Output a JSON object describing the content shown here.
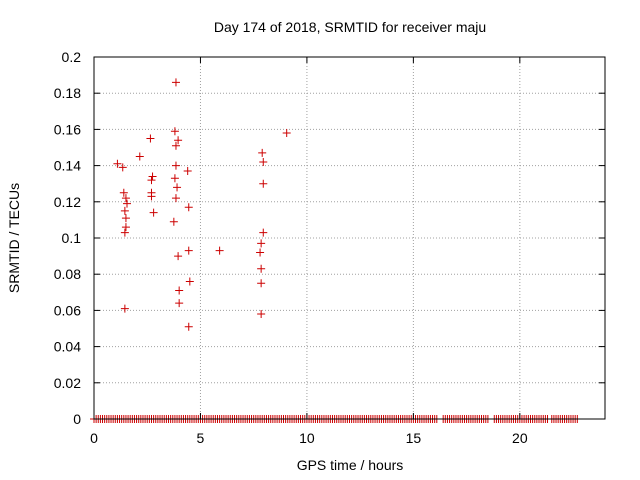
{
  "chart_data": {
    "type": "scatter",
    "title": "Day 174 of 2018, SRMTID for receiver maju",
    "xlabel": "GPS time / hours",
    "ylabel": "SRMTID / TECUs",
    "xlim": [
      0,
      24
    ],
    "ylim": [
      0,
      0.2
    ],
    "x_ticks": [
      0,
      5,
      10,
      15,
      20
    ],
    "y_ticks": [
      0,
      0.02,
      0.04,
      0.06,
      0.08,
      0.1,
      0.12,
      0.14,
      0.16,
      0.18,
      0.2
    ],
    "x_tick_labels": [
      "0",
      "5",
      "10",
      "15",
      "20"
    ],
    "y_tick_labels": [
      "0",
      "0.02",
      "0.04",
      "0.06",
      "0.08",
      "0.1",
      "0.12",
      "0.14",
      "0.16",
      "0.18",
      "0.2"
    ],
    "grid": true,
    "marker": "+",
    "marker_color": "#cc0000",
    "baseline": {
      "y": 0,
      "x_start": 0,
      "x_end": 22.75,
      "step": 0.1,
      "gaps": [
        [
          16.15,
          16.35
        ],
        [
          18.55,
          18.7
        ],
        [
          21.35,
          21.45
        ]
      ]
    },
    "series": [
      {
        "name": "SRMTID",
        "points": [
          [
            1.1,
            0.141
          ],
          [
            1.35,
            0.139
          ],
          [
            1.4,
            0.125
          ],
          [
            1.5,
            0.122
          ],
          [
            1.55,
            0.119
          ],
          [
            1.45,
            0.115
          ],
          [
            1.5,
            0.111
          ],
          [
            1.5,
            0.106
          ],
          [
            1.45,
            0.103
          ],
          [
            1.45,
            0.061
          ],
          [
            2.15,
            0.145
          ],
          [
            2.65,
            0.155
          ],
          [
            2.75,
            0.134
          ],
          [
            2.7,
            0.132
          ],
          [
            2.7,
            0.125
          ],
          [
            2.7,
            0.123
          ],
          [
            2.8,
            0.114
          ],
          [
            3.85,
            0.186
          ],
          [
            3.8,
            0.159
          ],
          [
            3.95,
            0.154
          ],
          [
            3.85,
            0.151
          ],
          [
            3.85,
            0.14
          ],
          [
            3.8,
            0.133
          ],
          [
            3.9,
            0.128
          ],
          [
            3.85,
            0.122
          ],
          [
            3.75,
            0.109
          ],
          [
            3.95,
            0.09
          ],
          [
            4.0,
            0.071
          ],
          [
            4.0,
            0.064
          ],
          [
            4.4,
            0.137
          ],
          [
            4.45,
            0.117
          ],
          [
            4.45,
            0.093
          ],
          [
            4.5,
            0.076
          ],
          [
            4.45,
            0.051
          ],
          [
            5.9,
            0.093
          ],
          [
            7.9,
            0.147
          ],
          [
            7.95,
            0.142
          ],
          [
            7.95,
            0.13
          ],
          [
            7.95,
            0.103
          ],
          [
            7.85,
            0.097
          ],
          [
            7.8,
            0.092
          ],
          [
            7.85,
            0.083
          ],
          [
            7.85,
            0.075
          ],
          [
            7.85,
            0.058
          ],
          [
            9.05,
            0.158
          ]
        ]
      }
    ]
  }
}
